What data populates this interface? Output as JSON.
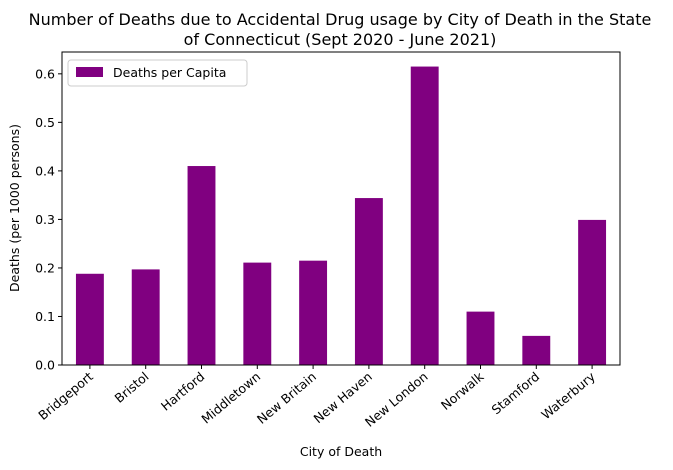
{
  "chart_data": {
    "type": "bar",
    "title_line1": "Number of Deaths due to Accidental Drug usage by City of Death in the State",
    "title_line2": "of Connecticut (Sept 2020 - June 2021)",
    "xlabel": "City of Death",
    "ylabel": "Deaths (per 1000 persons)",
    "categories": [
      "Bridgeport",
      "Bristol",
      "Hartford",
      "Middletown",
      "New Britain",
      "New Haven",
      "New London",
      "Norwalk",
      "Stamford",
      "Waterbury"
    ],
    "series": [
      {
        "name": "Deaths per Capita",
        "color": "#800080",
        "values": [
          0.188,
          0.197,
          0.41,
          0.211,
          0.215,
          0.344,
          0.615,
          0.11,
          0.06,
          0.299
        ]
      }
    ],
    "ylim": [
      0,
      0.645
    ],
    "yticks": [
      "0.0",
      "0.1",
      "0.2",
      "0.3",
      "0.4",
      "0.5",
      "0.6"
    ],
    "legend_position": "top-left",
    "grid": false
  }
}
